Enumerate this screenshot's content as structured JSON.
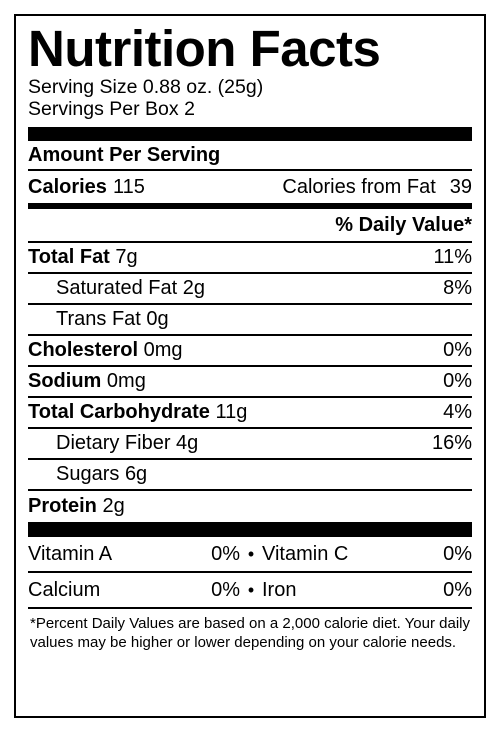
{
  "title": "Nutrition Facts",
  "serving_size": "Serving Size 0.88 oz. (25g)",
  "servings_per": "Servings Per Box 2",
  "amount_per_serving": "Amount Per Serving",
  "calories": {
    "label": "Calories",
    "value": "115",
    "fat_label": "Calories from Fat",
    "fat_value": "39"
  },
  "daily_value_header": "% Daily Value*",
  "nutrients": [
    {
      "name": "Total Fat",
      "amount": "7g",
      "dv": "11%"
    },
    {
      "name": "Saturated Fat",
      "amount": "2g",
      "dv": "8%"
    },
    {
      "name": "Trans Fat",
      "amount": "0g",
      "dv": ""
    },
    {
      "name": "Cholesterol",
      "amount": "0mg",
      "dv": "0%"
    },
    {
      "name": "Sodium",
      "amount": "0mg",
      "dv": "0%"
    },
    {
      "name": "Total Carbohydrate",
      "amount": "11g",
      "dv": "4%"
    },
    {
      "name": "Dietary Fiber",
      "amount": "4g",
      "dv": "16%"
    },
    {
      "name": "Sugars",
      "amount": "6g",
      "dv": ""
    },
    {
      "name": "Protein",
      "amount": "2g",
      "dv": ""
    }
  ],
  "vitamins": [
    {
      "name": "Vitamin A",
      "dv": "0%"
    },
    {
      "name": "Vitamin C",
      "dv": "0%"
    },
    {
      "name": "Calcium",
      "dv": "0%"
    },
    {
      "name": "Iron",
      "dv": "0%"
    }
  ],
  "bullet": "•",
  "footnote": "*Percent Daily Values are based on a 2,000 calorie diet. Your daily values may be higher or lower depending on your calorie needs."
}
